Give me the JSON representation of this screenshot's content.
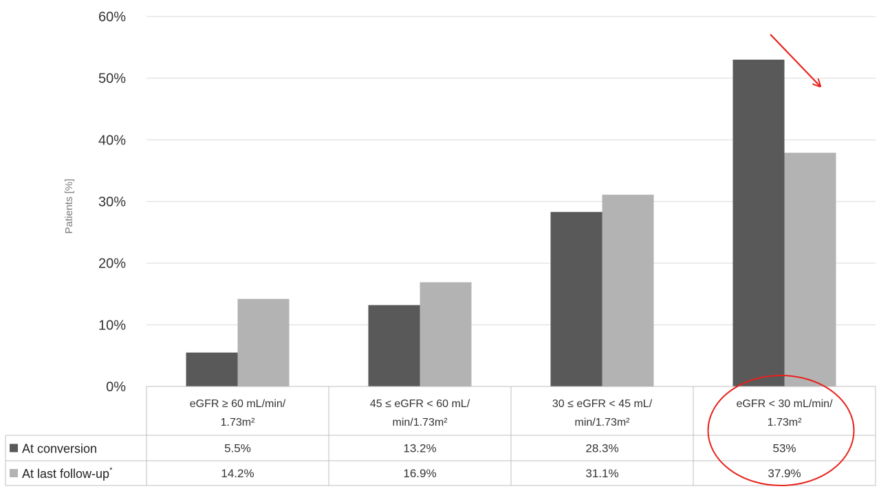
{
  "chart_data": {
    "type": "bar",
    "title": "",
    "xlabel": "",
    "ylabel": "Patients [%]",
    "ylim": [
      0,
      60
    ],
    "y_ticks": [
      0,
      10,
      20,
      30,
      40,
      50,
      60
    ],
    "y_tick_labels": [
      "0%",
      "10%",
      "20%",
      "30%",
      "40%",
      "50%",
      "60%"
    ],
    "grid": true,
    "legend_placement": "data-table-left",
    "categories": [
      [
        "eGFR ≥ 60 mL/min/",
        "1.73m²"
      ],
      [
        "45 ≤ eGFR < 60 mL/",
        "min/1.73m²"
      ],
      [
        "30 ≤ eGFR < 45 mL/",
        "min/1.73m²"
      ],
      [
        "eGFR < 30 mL/min/",
        "1.73m²"
      ]
    ],
    "series": [
      {
        "name": "At conversion",
        "color": "#595959",
        "values": [
          5.5,
          13.2,
          28.3,
          53
        ],
        "labels": [
          "5.5%",
          "13.2%",
          "28.3%",
          "53%"
        ]
      },
      {
        "name": "At last follow-up",
        "name_suffix": "*",
        "color": "#b3b3b3",
        "values": [
          14.2,
          16.9,
          31.1,
          37.9
        ],
        "labels": [
          "14.2%",
          "16.9%",
          "31.1%",
          "37.9%"
        ]
      }
    ],
    "annotations": [
      {
        "type": "arrow",
        "color": "#e8211b",
        "target": "category-4-last-follow-up"
      },
      {
        "type": "ellipse",
        "color": "#e8211b",
        "target": "category-4-table-column"
      }
    ]
  }
}
